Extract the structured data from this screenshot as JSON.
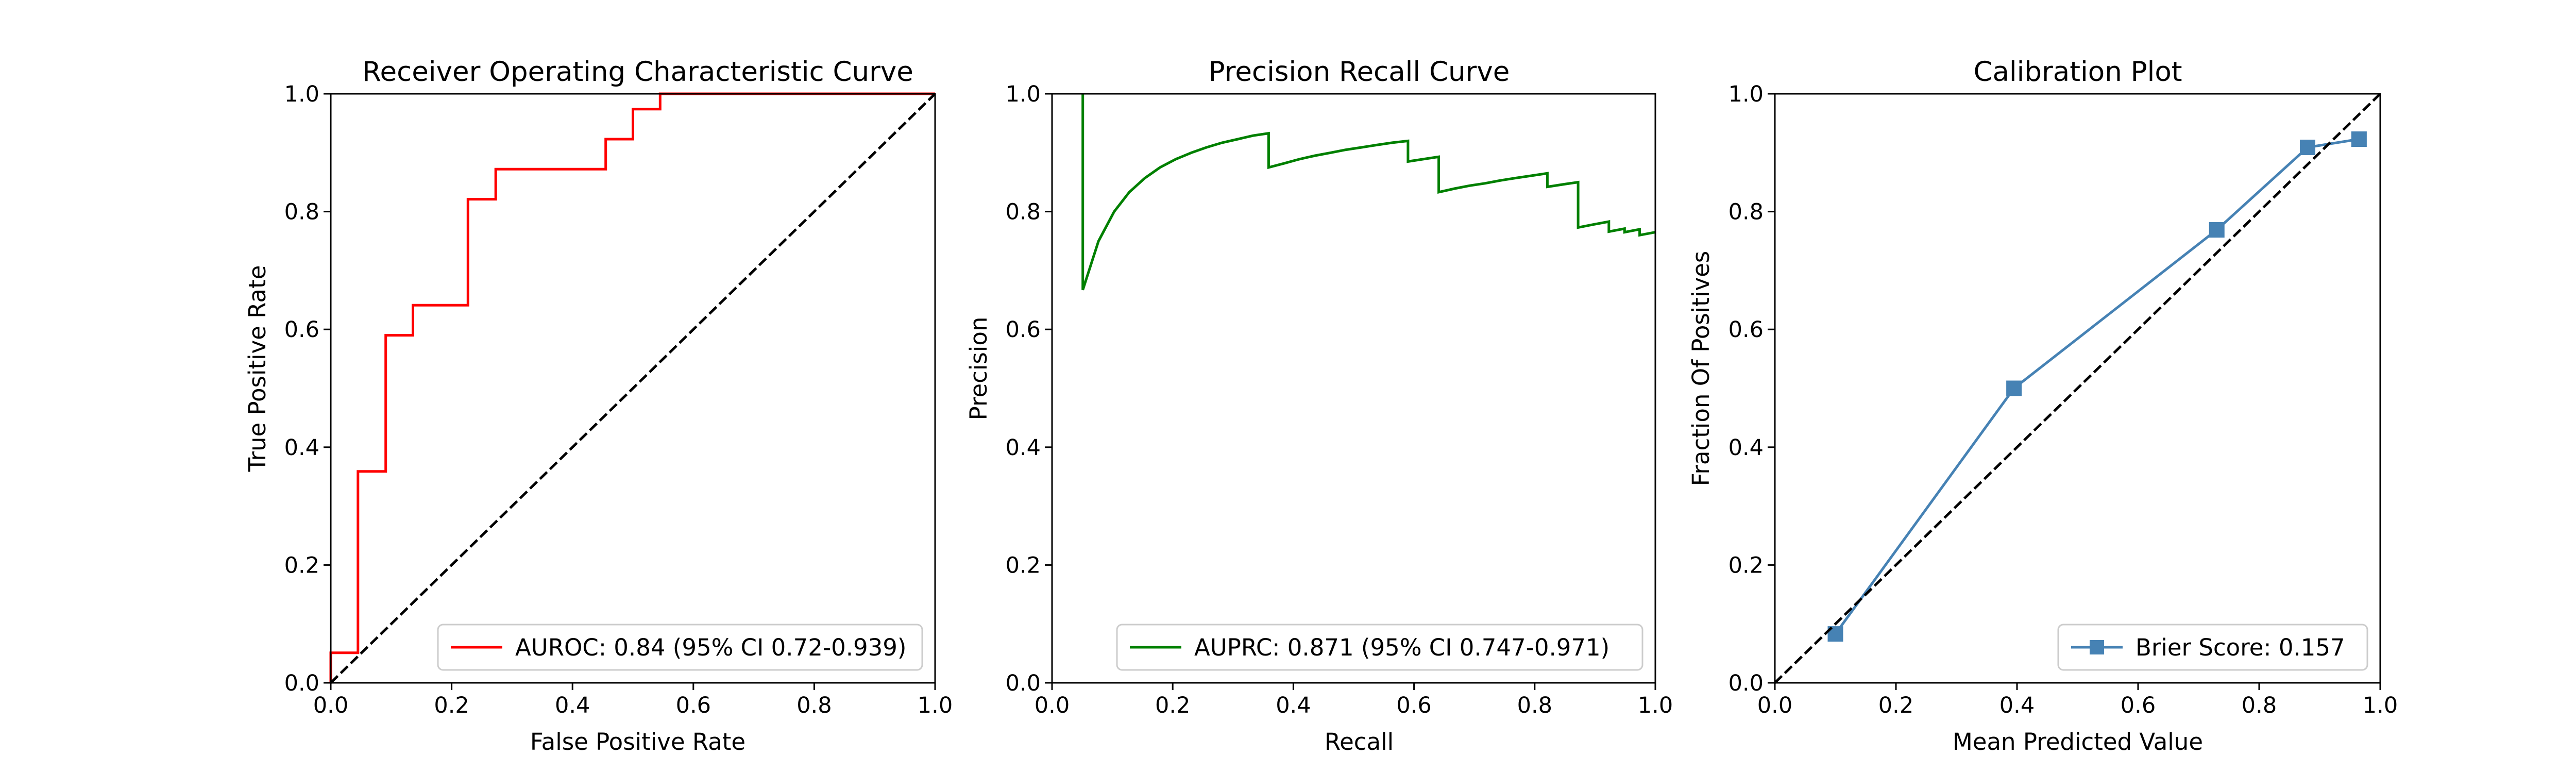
{
  "chart_data": [
    {
      "type": "line",
      "title": "Receiver Operating Characteristic Curve",
      "xlabel": "False Positive Rate",
      "ylabel": "True Positive Rate",
      "xlim": [
        0,
        1
      ],
      "ylim": [
        0,
        1
      ],
      "xticks": [
        "0.0",
        "0.2",
        "0.4",
        "0.6",
        "0.8",
        "1.0"
      ],
      "yticks": [
        "0.0",
        "0.2",
        "0.4",
        "0.6",
        "0.8",
        "1.0"
      ],
      "grid": false,
      "legend_position": "lower-right",
      "series": [
        {
          "name": "AUROC: 0.84 (95% CI 0.72-0.939)",
          "color": "#ff0000",
          "style": "solid",
          "marker": "none",
          "x": [
            0,
            0,
            0.045,
            0.045,
            0.091,
            0.091,
            0.136,
            0.136,
            0.227,
            0.227,
            0.273,
            0.273,
            0.455,
            0.455,
            0.5,
            0.5,
            0.545,
            0.545,
            1.0
          ],
          "y": [
            0,
            0.051,
            0.051,
            0.359,
            0.359,
            0.59,
            0.59,
            0.641,
            0.641,
            0.821,
            0.821,
            0.872,
            0.872,
            0.923,
            0.923,
            0.974,
            0.974,
            1.0,
            1.0
          ]
        },
        {
          "name": "",
          "color": "#000000",
          "style": "dashed",
          "marker": "none",
          "x": [
            0,
            1
          ],
          "y": [
            0,
            1
          ]
        }
      ]
    },
    {
      "type": "line",
      "title": "Precision Recall Curve",
      "xlabel": "Recall",
      "ylabel": "Precision",
      "xlim": [
        0,
        1
      ],
      "ylim": [
        0,
        1
      ],
      "xticks": [
        "0.0",
        "0.2",
        "0.4",
        "0.6",
        "0.8",
        "1.0"
      ],
      "yticks": [
        "0.0",
        "0.2",
        "0.4",
        "0.6",
        "0.8",
        "1.0"
      ],
      "grid": false,
      "legend_position": "lower-right",
      "series": [
        {
          "name": "AUPRC: 0.871 (95% CI 0.747-0.971)",
          "color": "#008000",
          "style": "solid",
          "marker": "none",
          "x": [
            0.051,
            0.051,
            0.077,
            0.103,
            0.128,
            0.154,
            0.179,
            0.205,
            0.231,
            0.256,
            0.282,
            0.308,
            0.333,
            0.359,
            0.359,
            0.385,
            0.41,
            0.436,
            0.462,
            0.487,
            0.513,
            0.538,
            0.564,
            0.59,
            0.59,
            0.615,
            0.641,
            0.641,
            0.667,
            0.692,
            0.718,
            0.744,
            0.769,
            0.795,
            0.821,
            0.821,
            0.846,
            0.872,
            0.872,
            0.897,
            0.923,
            0.923,
            0.949,
            0.949,
            0.974,
            0.974,
            1.0
          ],
          "y": [
            1.0,
            0.667,
            0.75,
            0.8,
            0.833,
            0.857,
            0.875,
            0.889,
            0.9,
            0.909,
            0.917,
            0.923,
            0.929,
            0.933,
            0.875,
            0.882,
            0.889,
            0.895,
            0.9,
            0.905,
            0.909,
            0.913,
            0.917,
            0.92,
            0.885,
            0.889,
            0.893,
            0.833,
            0.839,
            0.844,
            0.848,
            0.853,
            0.857,
            0.861,
            0.865,
            0.842,
            0.846,
            0.85,
            0.773,
            0.778,
            0.783,
            0.766,
            0.771,
            0.765,
            0.77,
            0.76,
            0.765
          ]
        }
      ]
    },
    {
      "type": "line",
      "title": "Calibration Plot",
      "xlabel": "Mean Predicted Value",
      "ylabel": "Fraction Of Positives",
      "xlim": [
        0,
        1
      ],
      "ylim": [
        0,
        1
      ],
      "xticks": [
        "0.0",
        "0.2",
        "0.4",
        "0.6",
        "0.8",
        "1.0"
      ],
      "yticks": [
        "0.0",
        "0.2",
        "0.4",
        "0.6",
        "0.8",
        "1.0"
      ],
      "grid": false,
      "legend_position": "lower-right",
      "series": [
        {
          "name": "Brier Score: 0.157",
          "color": "#4682b4",
          "style": "solid",
          "marker": "square",
          "x": [
            0.1,
            0.395,
            0.73,
            0.88,
            0.965
          ],
          "y": [
            0.083,
            0.5,
            0.769,
            0.909,
            0.923
          ]
        },
        {
          "name": "",
          "color": "#000000",
          "style": "dashed",
          "marker": "none",
          "x": [
            0,
            1
          ],
          "y": [
            0,
            1
          ]
        }
      ]
    }
  ]
}
